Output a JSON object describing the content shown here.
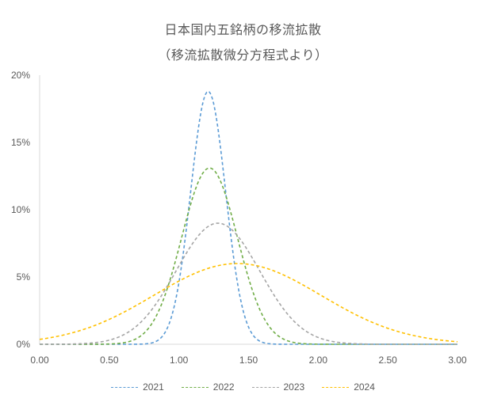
{
  "chart_data": {
    "type": "line",
    "title": "日本国内五銘柄の移流拡散",
    "subtitle": "（移流拡散微分方程式より）",
    "xlabel": "",
    "ylabel": "",
    "xlim": [
      0,
      3
    ],
    "ylim": [
      0,
      0.2
    ],
    "x_ticks": [
      "0.00",
      "0.50",
      "1.00",
      "1.50",
      "2.00",
      "2.50",
      "3.00"
    ],
    "y_ticks": [
      "0%",
      "5%",
      "10%",
      "15%",
      "20%"
    ],
    "grid": false,
    "legend_position": "bottom",
    "series": [
      {
        "name": "2021",
        "color": "#5B9BD5",
        "mu": 1.21,
        "sigma": 0.125,
        "peak": 0.188
      },
      {
        "name": "2022",
        "color": "#70AD47",
        "mu": 1.22,
        "sigma": 0.2,
        "peak": 0.131
      },
      {
        "name": "2023",
        "color": "#A5A5A5",
        "mu": 1.28,
        "sigma": 0.3,
        "peak": 0.09
      },
      {
        "name": "2024",
        "color": "#FFC000",
        "mu": 1.42,
        "sigma": 0.6,
        "peak": 0.06
      }
    ]
  }
}
